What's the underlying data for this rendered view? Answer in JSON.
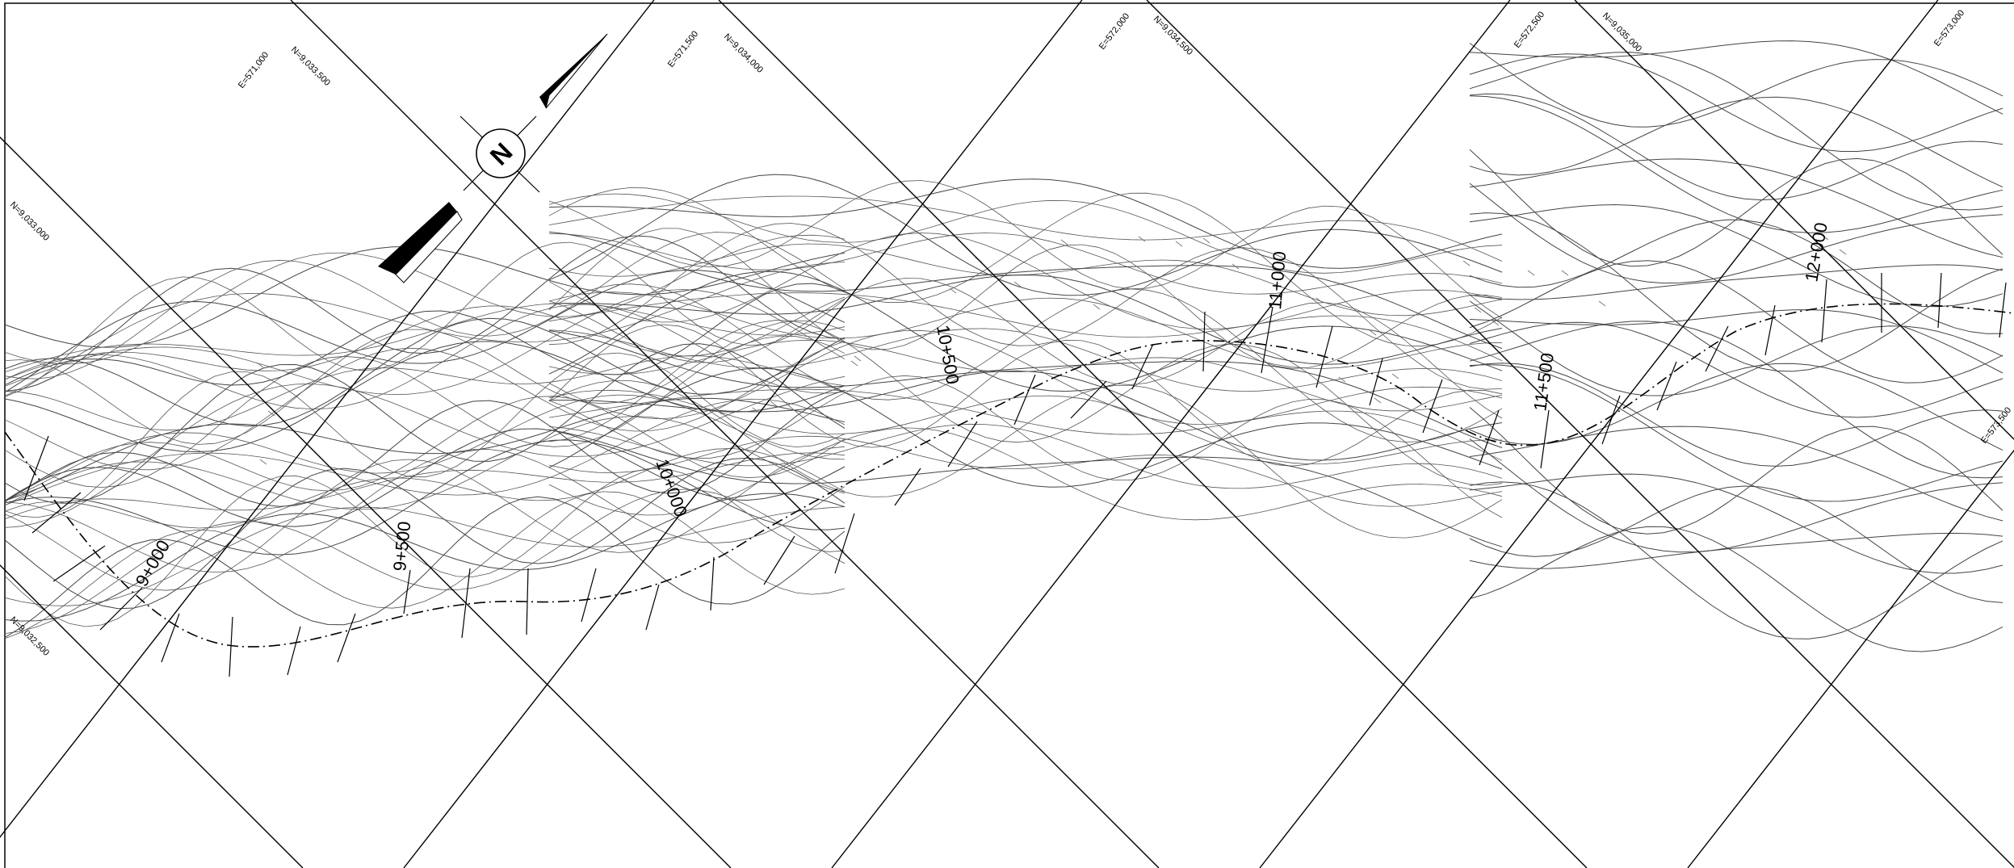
{
  "north_arrow": {
    "letter": "N"
  },
  "grid_labels": [
    {
      "id": "e-571000",
      "text": "E=571,000"
    },
    {
      "id": "n-9033500",
      "text": "N=9,033,500"
    },
    {
      "id": "e-571500",
      "text": "E=571,500"
    },
    {
      "id": "n-9034000",
      "text": "N=9,034,000"
    },
    {
      "id": "e-572000",
      "text": "E=572,000"
    },
    {
      "id": "n-9034500",
      "text": "N=9,034,500"
    },
    {
      "id": "e-572500",
      "text": "E=572,500"
    },
    {
      "id": "n-9035000",
      "text": "N=9,035,000"
    },
    {
      "id": "e-573000",
      "text": "E=573,000"
    },
    {
      "id": "n-9033000",
      "text": "N=9,033,000"
    },
    {
      "id": "n-9032500",
      "text": "N=9,032,500"
    },
    {
      "id": "e-573500",
      "text": "E=573,500"
    }
  ],
  "stations": [
    {
      "id": "9000",
      "text": "9+000"
    },
    {
      "id": "9500",
      "text": "9+500"
    },
    {
      "id": "10000",
      "text": "10+000"
    },
    {
      "id": "10500",
      "text": "10+500"
    },
    {
      "id": "11000",
      "text": "11+000"
    },
    {
      "id": "11500",
      "text": "11+500"
    },
    {
      "id": "12000",
      "text": "12+000"
    }
  ]
}
